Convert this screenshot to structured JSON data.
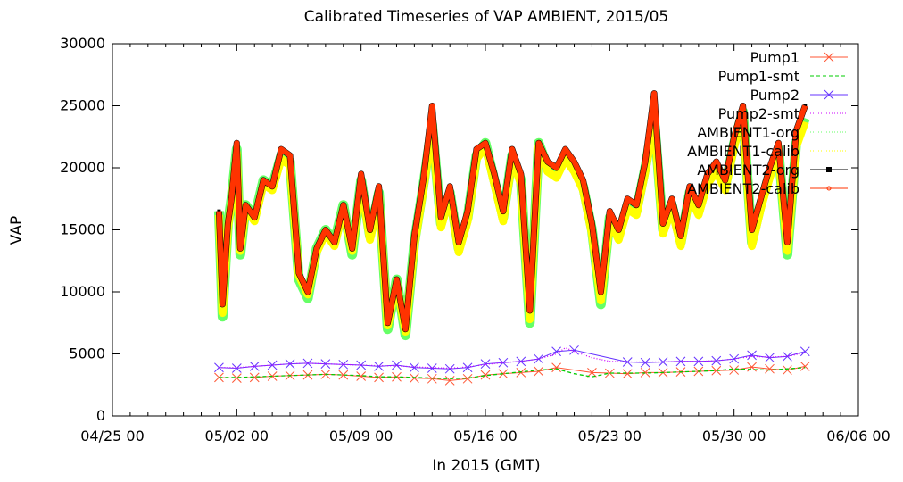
{
  "chart_data": {
    "type": "line",
    "title": "Calibrated Timeseries of VAP AMBIENT, 2015/05",
    "xlabel": "In 2015 (GMT)",
    "ylabel": "VAP",
    "ylim": [
      0,
      30000
    ],
    "yticks": [
      "0",
      "5000",
      "10000",
      "15000",
      "20000",
      "25000",
      "30000"
    ],
    "xlim_days": [
      -6,
      36
    ],
    "xticks": [
      {
        "day": -6,
        "label": "04/25 00"
      },
      {
        "day": 1,
        "label": "05/02 00"
      },
      {
        "day": 8,
        "label": "05/09 00"
      },
      {
        "day": 15,
        "label": "05/16 00"
      },
      {
        "day": 22,
        "label": "05/23 00"
      },
      {
        "day": 29,
        "label": "05/30 00"
      },
      {
        "day": 36,
        "label": "06/06 00"
      }
    ],
    "legend_position": "top-right",
    "series": [
      {
        "name": "Pump1",
        "color": "#ff5533",
        "style": "x-markers",
        "x": [
          0,
          1,
          2,
          3,
          4,
          5,
          6,
          7,
          8,
          9,
          10,
          11,
          12,
          13,
          14,
          15,
          16,
          17,
          18,
          19,
          21,
          22,
          23,
          24,
          25,
          26,
          27,
          28,
          29,
          30,
          31,
          32,
          33
        ],
        "y": [
          3100,
          3050,
          3100,
          3200,
          3250,
          3300,
          3350,
          3300,
          3200,
          3100,
          3150,
          3050,
          3000,
          2850,
          3000,
          3300,
          3400,
          3500,
          3600,
          3900,
          3500,
          3450,
          3400,
          3500,
          3500,
          3550,
          3600,
          3650,
          3700,
          3950,
          3800,
          3700,
          4000
        ]
      },
      {
        "name": "Pump1-smt",
        "color": "#00cc00",
        "style": "dashed",
        "x": [
          0,
          1,
          2,
          3,
          4,
          5,
          6,
          7,
          8,
          9,
          10,
          11,
          12,
          13,
          14,
          15,
          16,
          17,
          18,
          19,
          20,
          21,
          22,
          23,
          24,
          25,
          26,
          27,
          28,
          29,
          30,
          31,
          32,
          33
        ],
        "y": [
          3100,
          3100,
          3150,
          3200,
          3250,
          3300,
          3350,
          3300,
          3250,
          3150,
          3150,
          3100,
          3050,
          3000,
          3050,
          3250,
          3400,
          3550,
          3700,
          3800,
          3400,
          3150,
          3450,
          3450,
          3450,
          3500,
          3550,
          3600,
          3650,
          3800,
          3750,
          3700,
          3800,
          3900
        ]
      },
      {
        "name": "Pump2",
        "color": "#6633ff",
        "style": "x-markers",
        "x": [
          0,
          1,
          2,
          3,
          4,
          5,
          6,
          7,
          8,
          9,
          10,
          11,
          12,
          13,
          14,
          15,
          16,
          17,
          18,
          19,
          20,
          23,
          24,
          25,
          26,
          27,
          28,
          29,
          30,
          31,
          32,
          33
        ],
        "y": [
          3900,
          3850,
          4000,
          4100,
          4200,
          4250,
          4200,
          4150,
          4100,
          4000,
          4100,
          3900,
          3850,
          3800,
          3900,
          4200,
          4300,
          4400,
          4600,
          5200,
          5300,
          4350,
          4300,
          4350,
          4400,
          4400,
          4450,
          4600,
          4900,
          4700,
          4800,
          5200
        ]
      },
      {
        "name": "Pump2-smt",
        "color": "#cc00ff",
        "style": "dotted",
        "x": [
          0,
          1,
          2,
          3,
          4,
          5,
          6,
          7,
          8,
          9,
          10,
          11,
          12,
          13,
          14,
          15,
          16,
          17,
          18,
          19,
          19.5,
          20,
          21,
          22,
          23,
          24,
          25,
          26,
          27,
          28,
          29,
          30,
          31,
          32,
          33
        ],
        "y": [
          3900,
          3900,
          4000,
          4100,
          4200,
          4250,
          4200,
          4150,
          4100,
          4050,
          4050,
          3950,
          3900,
          3850,
          3950,
          4150,
          4300,
          4400,
          4600,
          5000,
          5500,
          5200,
          4700,
          4400,
          4350,
          4350,
          4350,
          4400,
          4400,
          4450,
          4600,
          4800,
          4750,
          4800,
          5100
        ]
      },
      {
        "name": "AMBIENT1-org",
        "color": "#66ff66",
        "style": "dotted",
        "x": [
          0,
          0.2,
          0.5,
          0.7,
          1,
          1.2,
          1.5,
          2,
          2.5,
          3,
          3.5,
          4,
          4.5,
          5,
          5.5,
          6,
          6.5,
          7,
          7.5,
          8,
          8.5,
          9,
          9.5,
          10,
          10.5,
          11,
          11.5,
          12,
          12.5,
          13,
          13.5,
          14,
          14.5,
          15,
          15.5,
          16,
          16.5,
          17,
          17.5,
          18,
          18.5,
          19,
          19.5,
          20,
          20.5,
          21,
          21.5,
          22,
          22.5,
          23,
          23.5,
          24,
          24.5,
          25,
          25.5,
          26,
          26.5,
          27,
          27.5,
          28,
          28.5,
          29,
          29.5,
          30,
          30.5,
          31,
          31.5,
          32,
          32.5,
          33
        ],
        "y": [
          16500,
          8000,
          15500,
          17500,
          21500,
          13000,
          17000,
          16000,
          19000,
          18500,
          21000,
          20500,
          11000,
          9500,
          13500,
          15000,
          14000,
          17000,
          13000,
          19000,
          14500,
          18000,
          7000,
          11000,
          6500,
          14000,
          18500,
          23500,
          15500,
          18000,
          13500,
          16000,
          21000,
          22000,
          19000,
          16000,
          21000,
          19000,
          7500,
          22000,
          20000,
          19500,
          21000,
          20000,
          18500,
          15000,
          9000,
          16000,
          14500,
          17000,
          16500,
          20000,
          24000,
          15000,
          17000,
          14000,
          18000,
          16500,
          19000,
          20000,
          18500,
          22000,
          24500,
          14000,
          17000,
          19500,
          21500,
          13000,
          22000,
          24000
        ]
      },
      {
        "name": "AMBIENT1-calib",
        "color": "#ffff00",
        "style": "dotted",
        "x": [
          0,
          0.2,
          0.5,
          0.7,
          1,
          1.2,
          1.5,
          2,
          2.5,
          3,
          3.5,
          4,
          4.5,
          5,
          5.5,
          6,
          6.5,
          7,
          7.5,
          8,
          8.5,
          9,
          9.5,
          10,
          10.5,
          11,
          11.5,
          12,
          12.5,
          13,
          13.5,
          14,
          14.5,
          15,
          15.5,
          16,
          16.5,
          17,
          17.5,
          18,
          18.5,
          19,
          19.5,
          20,
          20.5,
          21,
          21.5,
          22,
          22.5,
          23,
          23.5,
          24,
          24.5,
          25,
          25.5,
          26,
          26.5,
          27,
          27.5,
          28,
          28.5,
          29,
          29.5,
          30,
          30.5,
          31,
          31.5,
          32,
          32.5,
          33
        ],
        "y": [
          16200,
          8300,
          15200,
          17200,
          21200,
          13300,
          16700,
          15700,
          18700,
          18200,
          20700,
          20200,
          11300,
          9800,
          13200,
          14700,
          13700,
          16700,
          13300,
          18700,
          14200,
          17700,
          7300,
          10700,
          6800,
          13700,
          18200,
          23200,
          15200,
          17700,
          13200,
          15700,
          20700,
          21700,
          18700,
          15700,
          20700,
          18700,
          7800,
          21700,
          19700,
          19200,
          20700,
          19700,
          18200,
          14700,
          9300,
          15700,
          14200,
          16700,
          16200,
          19700,
          23700,
          14700,
          16700,
          13700,
          17700,
          16200,
          18700,
          19700,
          18200,
          21700,
          24200,
          13700,
          16700,
          19200,
          21200,
          13300,
          21700,
          23700
        ]
      },
      {
        "name": "AMBIENT2-org",
        "color": "#000000",
        "style": "square-markers",
        "x": [
          0,
          0.2,
          0.5,
          0.7,
          1,
          1.2,
          1.5,
          2,
          2.5,
          3,
          3.5,
          4,
          4.5,
          5,
          5.5,
          6,
          6.5,
          7,
          7.5,
          8,
          8.5,
          9,
          9.5,
          10,
          10.5,
          11,
          11.5,
          12,
          12.5,
          13,
          13.5,
          14,
          14.5,
          15,
          15.5,
          16,
          16.5,
          17,
          17.5,
          18,
          18.5,
          19,
          19.5,
          20,
          20.5,
          21,
          21.5,
          22,
          22.5,
          23,
          23.5,
          24,
          24.5,
          25,
          25.5,
          26,
          26.5,
          27,
          27.5,
          28,
          28.5,
          29,
          29.5,
          30,
          30.5,
          31,
          31.5,
          32,
          32.5,
          33
        ],
        "y": [
          16500,
          9000,
          15500,
          17500,
          22000,
          13500,
          17000,
          16000,
          19000,
          18500,
          21500,
          21000,
          11500,
          10000,
          13500,
          15000,
          14000,
          17000,
          13500,
          19500,
          15000,
          18500,
          7500,
          11000,
          7000,
          14500,
          19000,
          25000,
          16000,
          18500,
          14000,
          16500,
          21500,
          22000,
          19500,
          16500,
          21500,
          19500,
          8500,
          22000,
          20500,
          20000,
          21500,
          20500,
          19000,
          15500,
          10000,
          16500,
          15000,
          17500,
          17000,
          20500,
          26000,
          15500,
          17500,
          14500,
          18500,
          17000,
          19500,
          20500,
          19000,
          22500,
          25000,
          15000,
          17500,
          20000,
          22000,
          14000,
          23000,
          25000
        ]
      },
      {
        "name": "AMBIENT2-calib",
        "color": "#ff3300",
        "style": "thick-solid",
        "x": [
          0,
          0.2,
          0.5,
          0.7,
          1,
          1.2,
          1.5,
          2,
          2.5,
          3,
          3.5,
          4,
          4.5,
          5,
          5.5,
          6,
          6.5,
          7,
          7.5,
          8,
          8.5,
          9,
          9.5,
          10,
          10.5,
          11,
          11.5,
          12,
          12.5,
          13,
          13.5,
          14,
          14.5,
          15,
          15.5,
          16,
          16.5,
          17,
          17.5,
          18,
          18.5,
          19,
          19.5,
          20,
          20.5,
          21,
          21.5,
          22,
          22.5,
          23,
          23.5,
          24,
          24.5,
          25,
          25.5,
          26,
          26.5,
          27,
          27.5,
          28,
          28.5,
          29,
          29.5,
          30,
          30.5,
          31,
          31.5,
          32,
          32.5,
          33
        ],
        "y": [
          16500,
          9000,
          15500,
          17500,
          22000,
          13500,
          17000,
          16000,
          19000,
          18500,
          21500,
          21000,
          11500,
          10000,
          13500,
          15000,
          14000,
          17000,
          13500,
          19500,
          15000,
          18500,
          7500,
          11000,
          7000,
          14500,
          19000,
          25000,
          16000,
          18500,
          14000,
          16500,
          21500,
          22000,
          19500,
          16500,
          21500,
          19500,
          8500,
          22000,
          20500,
          20000,
          21500,
          20500,
          19000,
          15500,
          10000,
          16500,
          15000,
          17500,
          17000,
          20500,
          26000,
          15500,
          17500,
          14500,
          18500,
          17000,
          19500,
          20500,
          19000,
          22500,
          25000,
          15000,
          17500,
          20000,
          22000,
          14000,
          23000,
          25000
        ]
      }
    ]
  }
}
